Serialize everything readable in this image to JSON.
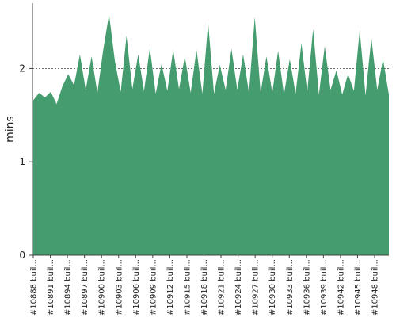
{
  "chart_data": {
    "type": "area",
    "ylabel": "mins",
    "ylim": [
      0,
      2.7
    ],
    "yticks": [
      0,
      1,
      2
    ],
    "grid": true,
    "legend": "none",
    "colors": {
      "area": "#459c6e",
      "axis": "#444444",
      "grid": "#6d6d6d",
      "background": "#ffffff"
    },
    "x_labels": [
      "#10888 buil...",
      "#10891 buil...",
      "#10894 buil...",
      "#10897 buil...",
      "#10900 buil...",
      "#10903 buil...",
      "#10906 buil...",
      "#10909 buil...",
      "#10912 buil...",
      "#10915 buil...",
      "#10918 buil...",
      "#10921 buil...",
      "#10924 buil...",
      "#10927 buil...",
      "#10930 buil...",
      "#10933 buil...",
      "#10936 buil...",
      "#10939 buil...",
      "#10942 buil...",
      "#10945 buil...",
      "#10948 buil..."
    ],
    "values": [
      1.66,
      1.74,
      1.69,
      1.75,
      1.62,
      1.81,
      1.94,
      1.82,
      2.15,
      1.77,
      2.13,
      1.74,
      2.2,
      2.58,
      2.08,
      1.75,
      2.35,
      1.78,
      2.15,
      1.76,
      2.22,
      1.73,
      2.05,
      1.76,
      2.2,
      1.78,
      2.13,
      1.74,
      2.2,
      1.73,
      2.49,
      1.73,
      2.04,
      1.77,
      2.21,
      1.77,
      2.15,
      1.74,
      2.55,
      1.74,
      2.13,
      1.74,
      2.19,
      1.72,
      2.1,
      1.73,
      2.27,
      1.75,
      2.42,
      1.72,
      2.24,
      1.77,
      1.98,
      1.72,
      1.94,
      1.76,
      2.41,
      1.71,
      2.33,
      1.77,
      2.1,
      1.72
    ]
  }
}
